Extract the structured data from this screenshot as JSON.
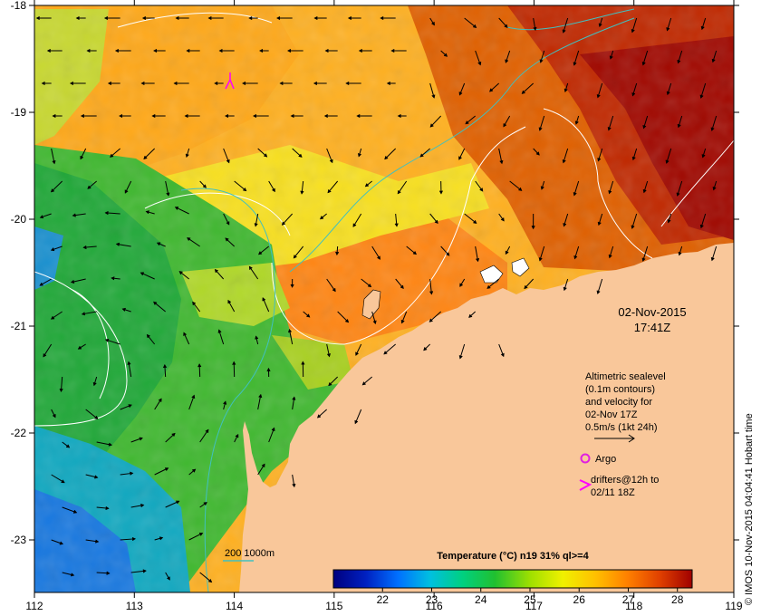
{
  "map": {
    "x_ticks": [
      "112",
      "113",
      "114",
      "115",
      "116",
      "117",
      "118",
      "119"
    ],
    "y_ticks": [
      "-18",
      "-19",
      "-20",
      "-21",
      "-22",
      "-23"
    ],
    "timestamp_date": "02-Nov-2015",
    "timestamp_time": "17:41Z",
    "altimetry_note": [
      "Altimetric sealevel",
      "(0.1m contours)",
      "and velocity for",
      "02-Nov 17Z",
      "0.5m/s (1kt 24h)"
    ],
    "argo_label": "Argo",
    "drifters_line1": "drifters@12h to",
    "drifters_line2": "02/11 18Z",
    "isobath_label": "200  1000m",
    "credit": "© IMOS 10-Nov-2015 04:04:41 Hobart time",
    "colors": {
      "land": "#f9c79a",
      "argo": "#e020e0",
      "drifter": "#ff00ff",
      "isobath": "#40c0c0"
    }
  },
  "colorbar": {
    "title": "Temperature (°C) n19 31% ql>=4",
    "ticks": [
      "22",
      "23",
      "24",
      "25",
      "26",
      "27",
      "28"
    ],
    "range": [
      21.0,
      28.3
    ],
    "colors": [
      "#00007f",
      "#0020c0",
      "#0070ff",
      "#00c0e0",
      "#00d080",
      "#20c030",
      "#a0e000",
      "#f0f000",
      "#ffc000",
      "#ff8000",
      "#e04000",
      "#a00000"
    ]
  }
}
